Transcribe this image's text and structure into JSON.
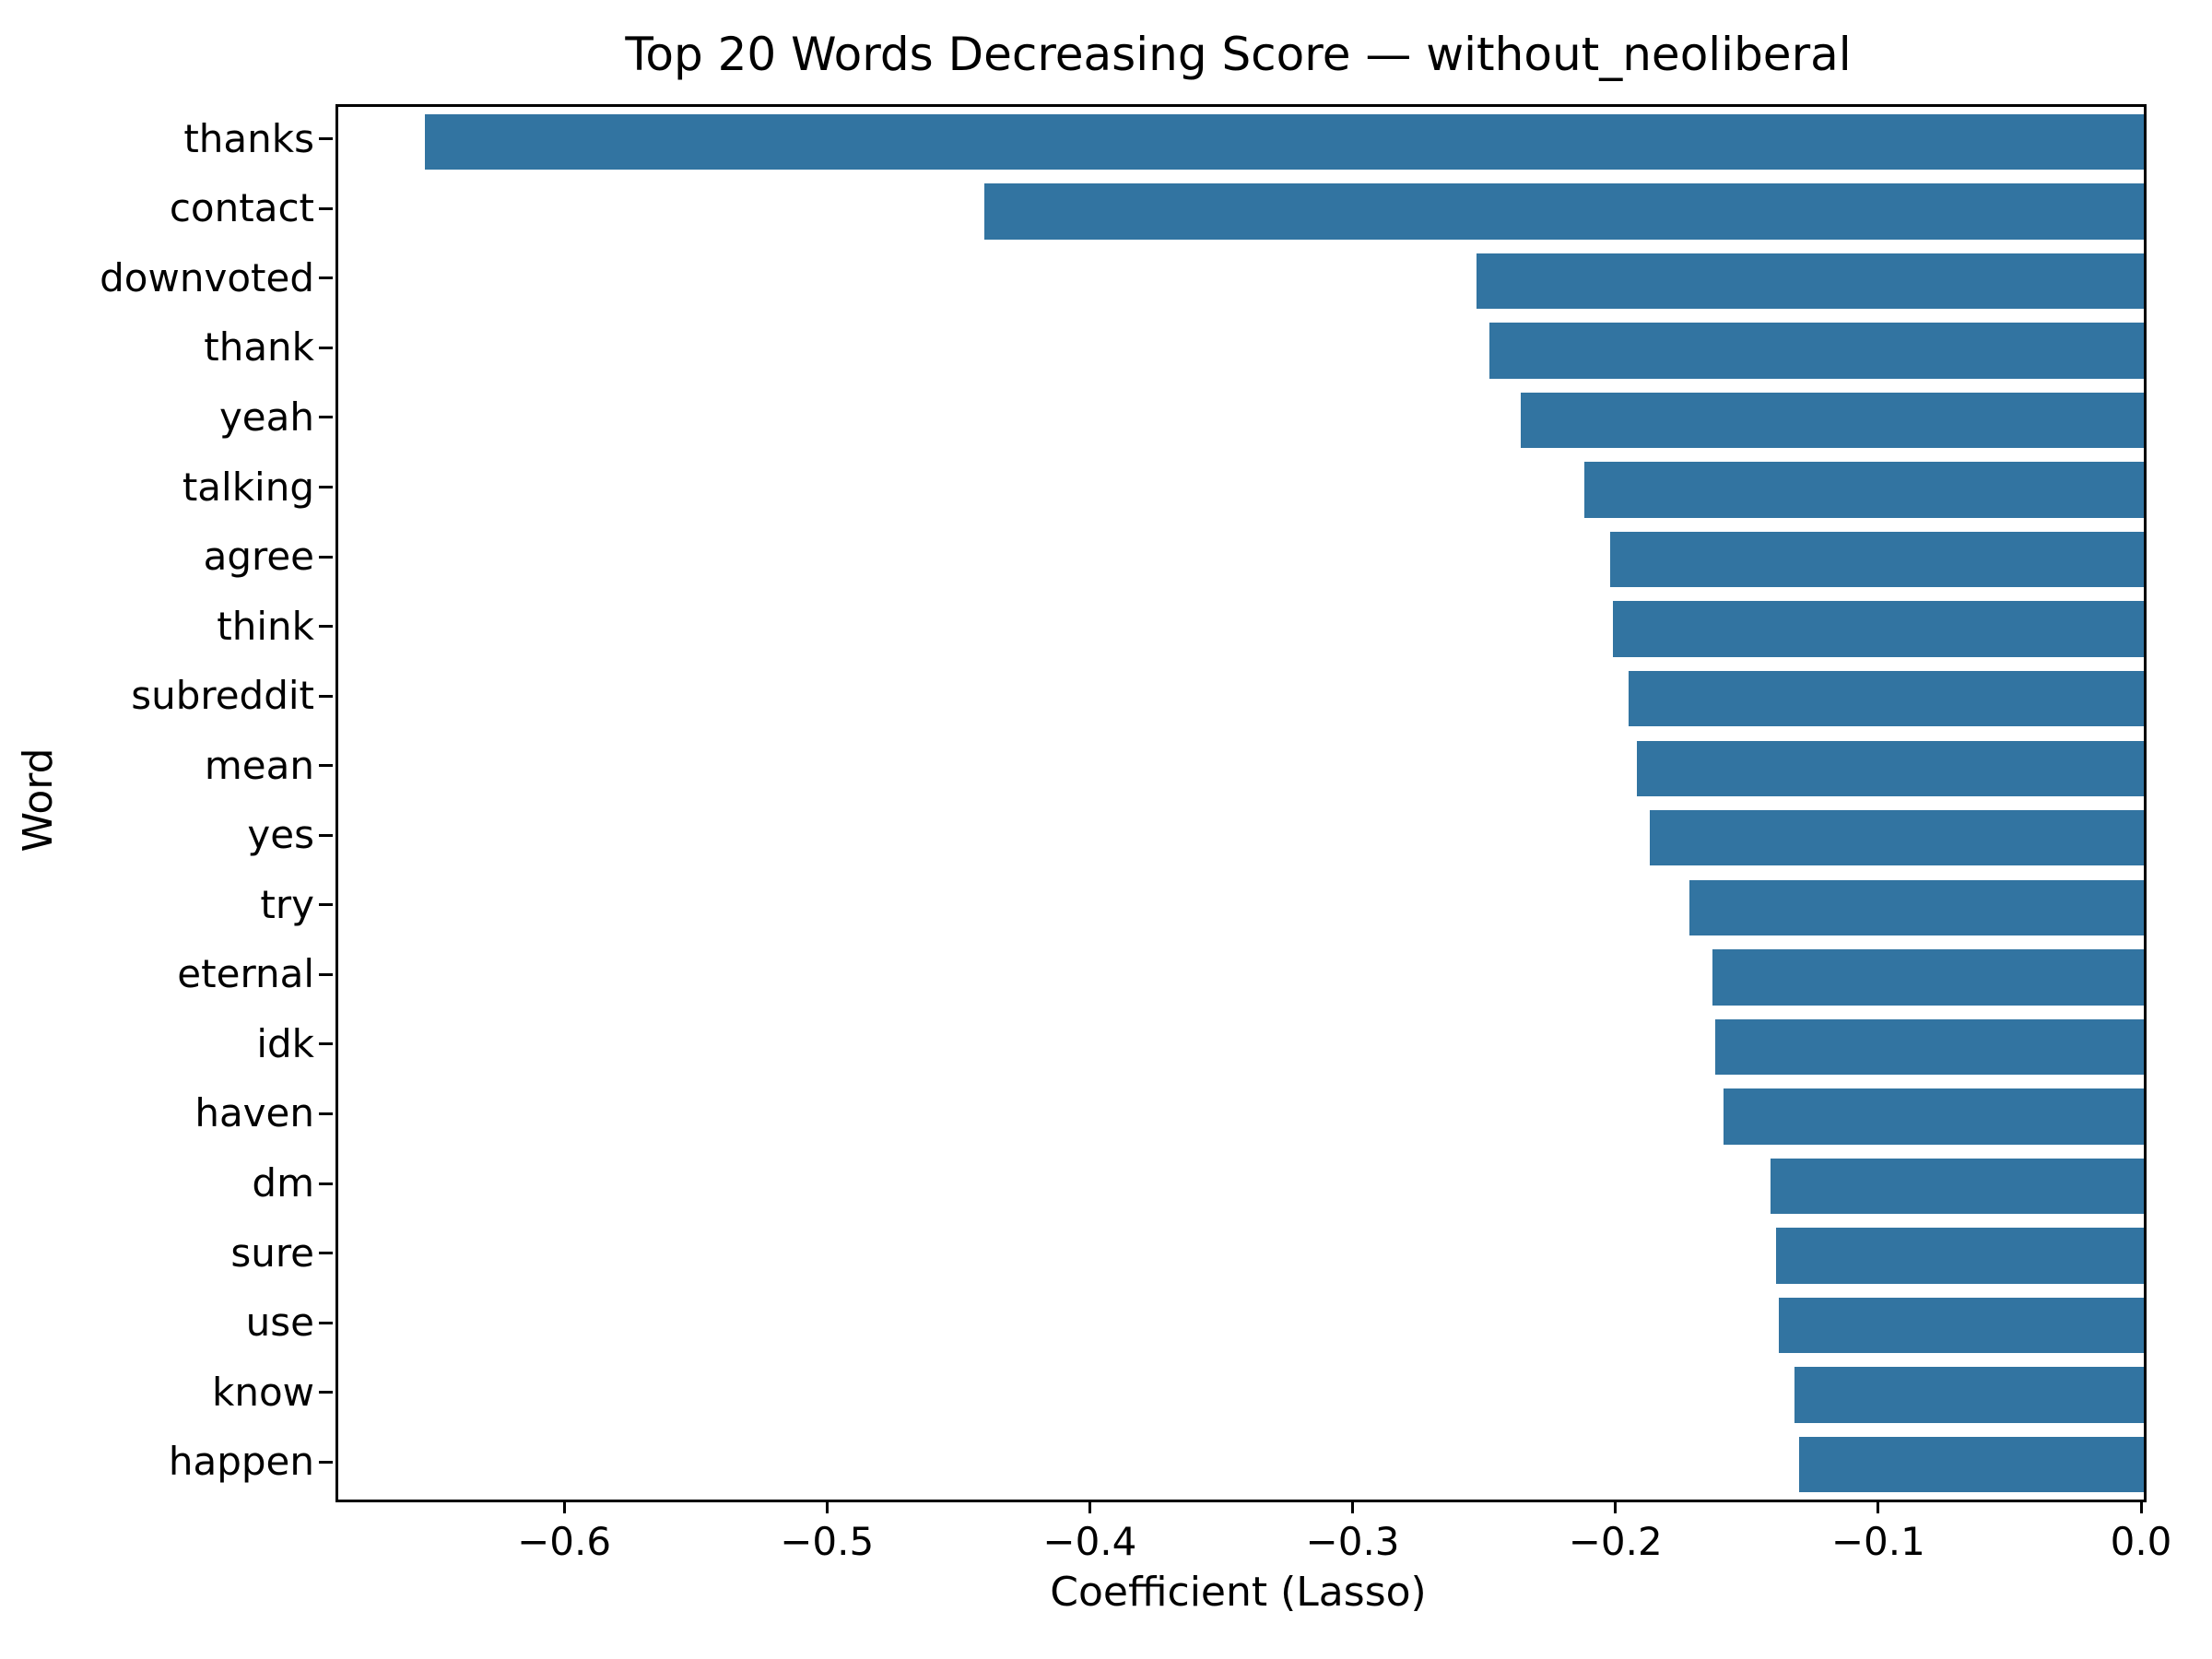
{
  "chart_data": {
    "type": "bar",
    "orientation": "horizontal",
    "title": "Top 20 Words Decreasing Score — without_neoliberal",
    "xlabel": "Coefficient (Lasso)",
    "ylabel": "Word",
    "categories": [
      "thanks",
      "contact",
      "downvoted",
      "thank",
      "yeah",
      "talking",
      "agree",
      "think",
      "subreddit",
      "mean",
      "yes",
      "try",
      "eternal",
      "idk",
      "haven",
      "dm",
      "sure",
      "use",
      "know",
      "happen"
    ],
    "values": [
      -0.654,
      -0.441,
      -0.254,
      -0.249,
      -0.237,
      -0.213,
      -0.203,
      -0.202,
      -0.196,
      -0.193,
      -0.188,
      -0.173,
      -0.164,
      -0.163,
      -0.16,
      -0.142,
      -0.14,
      -0.139,
      -0.133,
      -0.131
    ],
    "xlim": [
      -0.687,
      0.0
    ],
    "xticks": [
      -0.6,
      -0.5,
      -0.4,
      -0.3,
      -0.2,
      -0.1,
      0.0
    ],
    "xtick_labels": [
      "−0.6",
      "−0.5",
      "−0.4",
      "−0.3",
      "−0.2",
      "−0.1",
      "0.0"
    ],
    "bar_width_fraction": 0.8,
    "bar_color": "#3274a1",
    "axis_color": "#000000",
    "background_color": "#ffffff",
    "grid": false,
    "legend": null
  }
}
